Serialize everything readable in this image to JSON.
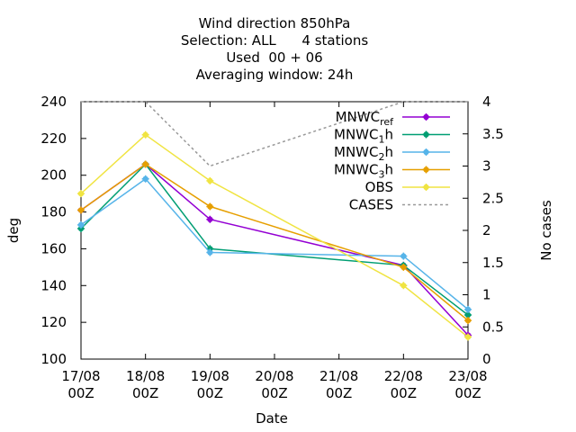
{
  "chart_data": {
    "type": "line",
    "title_lines": [
      "Wind direction 850hPa",
      "Selection: ALL      4 stations",
      "Used  00 + 06",
      "Averaging window: 24h"
    ],
    "xlabel": "Date",
    "ylabel": "deg",
    "y2label": "No cases",
    "x_ticks": [
      {
        "line1": "17/08",
        "line2": "00Z"
      },
      {
        "line1": "18/08",
        "line2": "00Z"
      },
      {
        "line1": "19/08",
        "line2": "00Z"
      },
      {
        "line1": "20/08",
        "line2": "00Z"
      },
      {
        "line1": "21/08",
        "line2": "00Z"
      },
      {
        "line1": "22/08",
        "line2": "00Z"
      },
      {
        "line1": "23/08",
        "line2": "00Z"
      }
    ],
    "xlim": [
      0,
      6
    ],
    "ylim": [
      100,
      240
    ],
    "y_ticks": [
      100,
      120,
      140,
      160,
      180,
      200,
      220,
      240
    ],
    "y2lim": [
      0,
      4
    ],
    "y2_ticks": [
      "0",
      "0.5",
      "1",
      "1.5",
      "2",
      "2.5",
      "3",
      "3.5",
      "4"
    ],
    "legend_position": "top-right",
    "grid": false,
    "series": [
      {
        "name": "MNWC_ref",
        "label_base": "MNWC",
        "label_sub": "ref",
        "color": "#9400d3",
        "marker": "plus-circle",
        "axis": "y1",
        "x": [
          0,
          1,
          2,
          5,
          6
        ],
        "values": [
          181,
          206,
          176,
          151,
          113
        ]
      },
      {
        "name": "MNWC_1h",
        "label_base": "MNWC",
        "label_sub": "1",
        "label_suffix": "h",
        "color": "#009e73",
        "marker": "plus-circle",
        "axis": "y1",
        "x": [
          0,
          1,
          2,
          5,
          6
        ],
        "values": [
          171,
          206,
          160,
          151,
          124
        ]
      },
      {
        "name": "MNWC_2h",
        "label_base": "MNWC",
        "label_sub": "2",
        "label_suffix": "h",
        "color": "#56b4e9",
        "marker": "plus-circle",
        "axis": "y1",
        "x": [
          0,
          1,
          2,
          5,
          6
        ],
        "values": [
          173,
          198,
          158,
          156,
          127
        ]
      },
      {
        "name": "MNWC_3h",
        "label_base": "MNWC",
        "label_sub": "3",
        "label_suffix": "h",
        "color": "#e69f00",
        "marker": "plus-circle",
        "axis": "y1",
        "x": [
          0,
          1,
          2,
          5,
          6
        ],
        "values": [
          181,
          206,
          183,
          150,
          121
        ]
      },
      {
        "name": "OBS",
        "label_base": "OBS",
        "color": "#f0e442",
        "marker": "plus-circle",
        "axis": "y1",
        "x": [
          0,
          1,
          2,
          5,
          6
        ],
        "values": [
          190,
          222,
          197,
          140,
          112
        ]
      },
      {
        "name": "CASES",
        "label_base": "CASES",
        "color": "#999999",
        "marker": "none",
        "dashed": true,
        "axis": "y2",
        "x": [
          0,
          1,
          2,
          5,
          6
        ],
        "values": [
          4,
          4,
          3,
          4,
          4
        ]
      }
    ]
  }
}
